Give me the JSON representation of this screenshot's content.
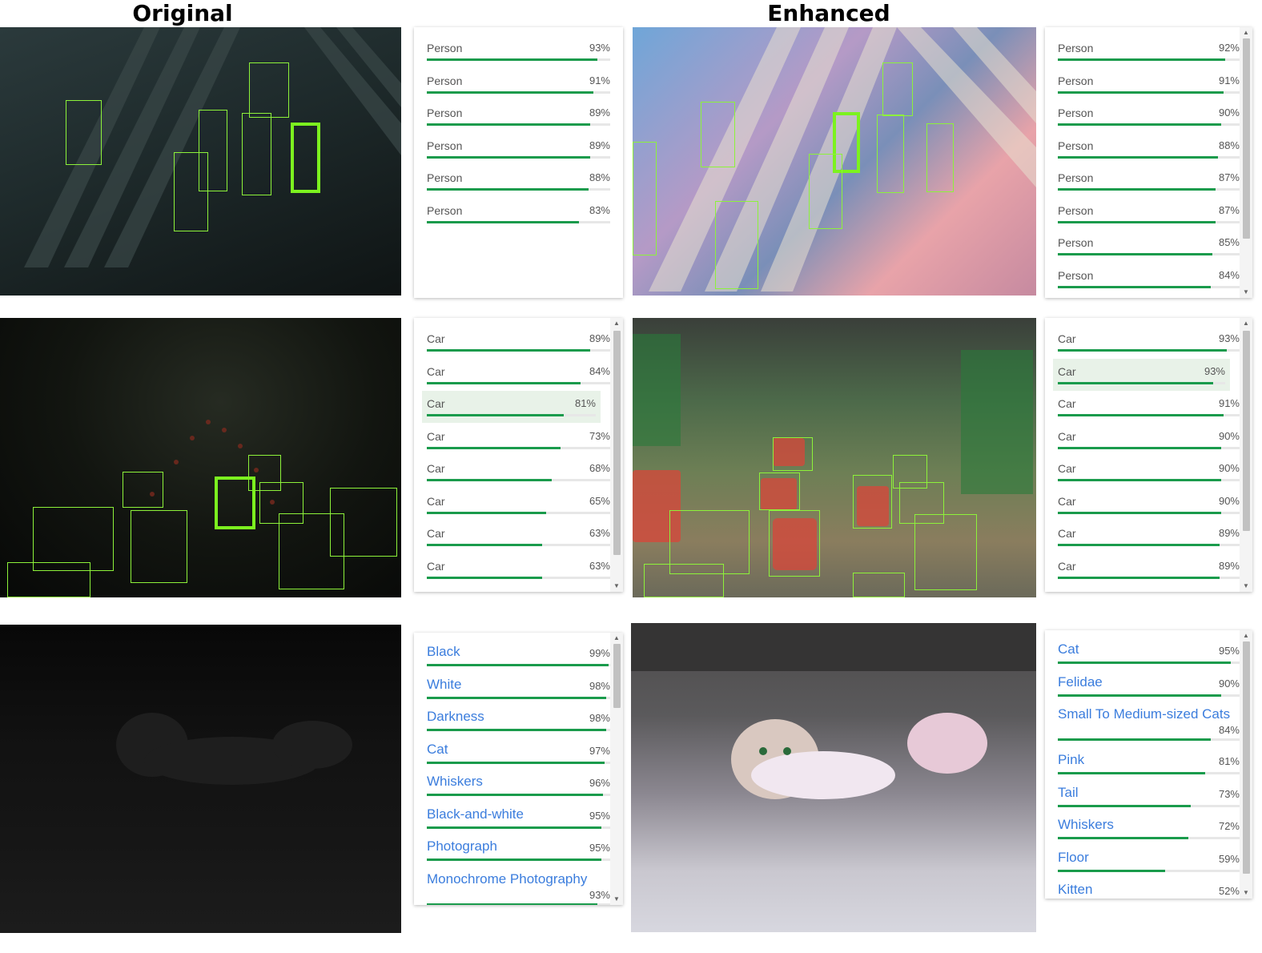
{
  "headers": {
    "original": "Original",
    "enhanced": "Enhanced"
  },
  "rows": [
    {
      "original_panel": {
        "kind": "object",
        "items": [
          {
            "label": "Person",
            "pct": "93%",
            "value": 0.93
          },
          {
            "label": "Person",
            "pct": "91%",
            "value": 0.91
          },
          {
            "label": "Person",
            "pct": "89%",
            "value": 0.89
          },
          {
            "label": "Person",
            "pct": "89%",
            "value": 0.89
          },
          {
            "label": "Person",
            "pct": "88%",
            "value": 0.88
          },
          {
            "label": "Person",
            "pct": "83%",
            "value": 0.83
          }
        ]
      },
      "enhanced_panel": {
        "kind": "object",
        "items": [
          {
            "label": "Person",
            "pct": "92%",
            "value": 0.92
          },
          {
            "label": "Person",
            "pct": "91%",
            "value": 0.91
          },
          {
            "label": "Person",
            "pct": "90%",
            "value": 0.9
          },
          {
            "label": "Person",
            "pct": "88%",
            "value": 0.88
          },
          {
            "label": "Person",
            "pct": "87%",
            "value": 0.87
          },
          {
            "label": "Person",
            "pct": "87%",
            "value": 0.87
          },
          {
            "label": "Person",
            "pct": "85%",
            "value": 0.85
          },
          {
            "label": "Person",
            "pct": "84%",
            "value": 0.84
          }
        ]
      }
    },
    {
      "original_panel": {
        "kind": "object",
        "highlight": 2,
        "items": [
          {
            "label": "Car",
            "pct": "89%",
            "value": 0.89
          },
          {
            "label": "Car",
            "pct": "84%",
            "value": 0.84
          },
          {
            "label": "Car",
            "pct": "81%",
            "value": 0.81
          },
          {
            "label": "Car",
            "pct": "73%",
            "value": 0.73
          },
          {
            "label": "Car",
            "pct": "68%",
            "value": 0.68
          },
          {
            "label": "Car",
            "pct": "65%",
            "value": 0.65
          },
          {
            "label": "Car",
            "pct": "63%",
            "value": 0.63
          },
          {
            "label": "Car",
            "pct": "63%",
            "value": 0.63
          }
        ]
      },
      "enhanced_panel": {
        "kind": "object",
        "highlight": 1,
        "items": [
          {
            "label": "Car",
            "pct": "93%",
            "value": 0.93
          },
          {
            "label": "Car",
            "pct": "93%",
            "value": 0.93
          },
          {
            "label": "Car",
            "pct": "91%",
            "value": 0.91
          },
          {
            "label": "Car",
            "pct": "90%",
            "value": 0.9
          },
          {
            "label": "Car",
            "pct": "90%",
            "value": 0.9
          },
          {
            "label": "Car",
            "pct": "90%",
            "value": 0.9
          },
          {
            "label": "Car",
            "pct": "89%",
            "value": 0.89
          },
          {
            "label": "Car",
            "pct": "89%",
            "value": 0.89
          }
        ]
      }
    },
    {
      "original_panel": {
        "kind": "label",
        "items": [
          {
            "label": "Black",
            "pct": "99%",
            "value": 0.99
          },
          {
            "label": "White",
            "pct": "98%",
            "value": 0.98
          },
          {
            "label": "Darkness",
            "pct": "98%",
            "value": 0.98
          },
          {
            "label": "Cat",
            "pct": "97%",
            "value": 0.97
          },
          {
            "label": "Whiskers",
            "pct": "96%",
            "value": 0.96
          },
          {
            "label": "Black-and-white",
            "pct": "95%",
            "value": 0.95
          },
          {
            "label": "Photograph",
            "pct": "95%",
            "value": 0.95
          },
          {
            "label": "Monochrome Photography",
            "pct": "93%",
            "value": 0.93
          }
        ]
      },
      "enhanced_panel": {
        "kind": "label",
        "items": [
          {
            "label": "Cat",
            "pct": "95%",
            "value": 0.95
          },
          {
            "label": "Felidae",
            "pct": "90%",
            "value": 0.9
          },
          {
            "label": "Small To Medium-sized Cats",
            "pct": "84%",
            "value": 0.84
          },
          {
            "label": "Pink",
            "pct": "81%",
            "value": 0.81
          },
          {
            "label": "Tail",
            "pct": "73%",
            "value": 0.73
          },
          {
            "label": "Whiskers",
            "pct": "72%",
            "value": 0.72
          },
          {
            "label": "Floor",
            "pct": "59%",
            "value": 0.59
          },
          {
            "label": "Kitten",
            "pct": "52%",
            "value": 0.52
          }
        ]
      }
    }
  ],
  "colors": {
    "bar": "#1a9b4c",
    "box": "#8df23a",
    "label_text": "#3b7ddd",
    "highlight": "#e8f2e8"
  }
}
